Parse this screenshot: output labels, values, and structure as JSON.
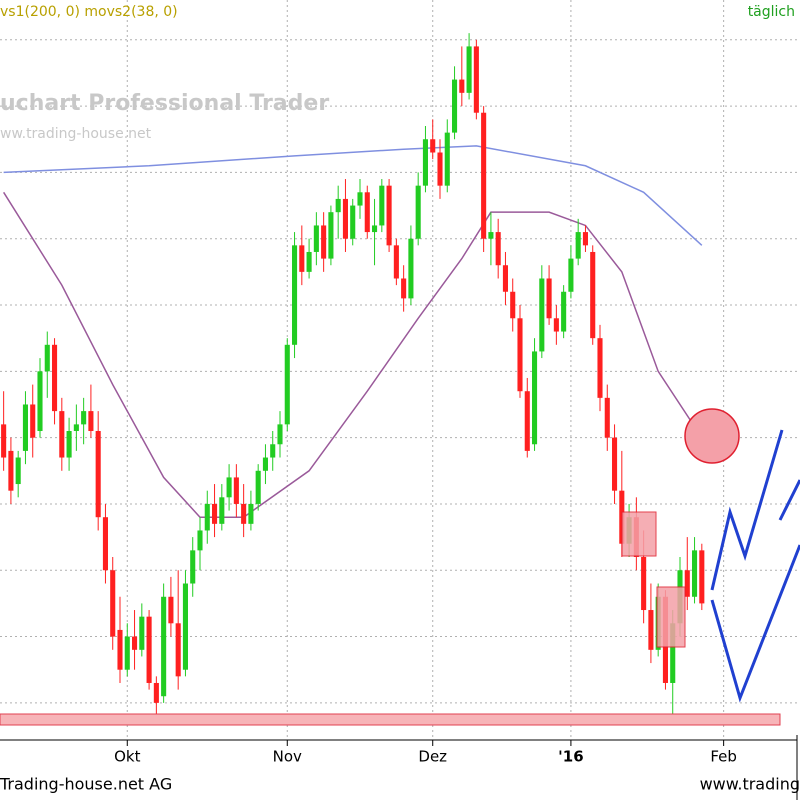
{
  "chart_data": {
    "type": "candlestick",
    "legend_text": "vs1(200, 0) movs2(38, 0)",
    "period": "täglich",
    "watermark": [
      "uchart Professional Trader",
      "ww.trading-house.net"
    ],
    "footer_left": "Trading-house.net AG",
    "footer_right": "www.trading",
    "up_color": "#22cc22",
    "down_color": "#ff2020",
    "xlim": [
      -0.5,
      109.5
    ],
    "ylim": [
      -5.6,
      106
    ],
    "yticks": [
      0,
      10,
      20,
      30,
      40,
      50,
      60,
      70,
      80,
      90,
      100
    ],
    "xticks": [
      {
        "value": 17,
        "label": "Okt"
      },
      {
        "value": 39,
        "label": "Nov"
      },
      {
        "value": 59,
        "label": "Dez"
      },
      {
        "value": 78,
        "label": "'16"
      },
      {
        "value": 99,
        "label": "Feb"
      }
    ],
    "grid": true,
    "open": [
      42,
      38,
      33,
      38,
      45,
      41,
      50,
      54,
      44,
      37,
      41,
      42,
      44,
      41,
      28,
      20,
      11,
      5,
      10,
      8,
      13,
      3,
      1,
      16,
      12,
      5,
      18,
      23,
      26,
      30,
      27,
      31,
      34,
      30,
      27,
      30,
      35,
      37,
      39,
      42,
      54,
      69,
      65,
      68,
      72,
      67,
      74,
      76,
      70,
      75,
      77,
      71,
      72,
      78,
      69,
      64,
      61,
      70,
      78,
      85,
      83,
      78,
      86,
      94,
      92,
      99,
      89,
      70,
      71,
      66,
      62,
      58,
      47,
      39,
      53,
      64,
      58,
      56,
      62,
      67,
      71,
      68,
      55,
      46,
      40,
      32,
      24,
      28,
      22,
      14,
      8,
      16,
      3,
      12,
      20,
      16,
      23
    ],
    "high": [
      47,
      40,
      38,
      47,
      48,
      52,
      56,
      55,
      46,
      43,
      45,
      46,
      48,
      44,
      30,
      22,
      16,
      12,
      14,
      15,
      14,
      4,
      18,
      19,
      20,
      20,
      25,
      28,
      32,
      33,
      33,
      36,
      36,
      33,
      32,
      36,
      39,
      41,
      44,
      55,
      71,
      72,
      70,
      74,
      74,
      75,
      78,
      79,
      76,
      79,
      78,
      76,
      79,
      79,
      70,
      66,
      72,
      80,
      87,
      88,
      85,
      88,
      96,
      99,
      101,
      100,
      90,
      74,
      73,
      68,
      64,
      60,
      49,
      55,
      66,
      66,
      60,
      63,
      69,
      73,
      72,
      69,
      57,
      48,
      42,
      38,
      30,
      31,
      26,
      18,
      18,
      17,
      14,
      22,
      25,
      25,
      24
    ],
    "low": [
      35,
      30,
      31,
      36,
      37,
      40,
      46,
      42,
      35,
      35,
      38,
      39,
      40,
      26,
      18,
      8,
      3,
      4,
      5,
      7,
      2,
      -2,
      0,
      10,
      2,
      4,
      16,
      20,
      24,
      25,
      26,
      29,
      28,
      25,
      26,
      29,
      33,
      35,
      37,
      41,
      52,
      63,
      64,
      66,
      65,
      66,
      70,
      68,
      69,
      73,
      70,
      66,
      71,
      68,
      63,
      59,
      60,
      69,
      77,
      82,
      76,
      77,
      85,
      90,
      91,
      88,
      68,
      66,
      64,
      60,
      56,
      46,
      37,
      38,
      52,
      57,
      54,
      55,
      61,
      66,
      68,
      54,
      44,
      38,
      30,
      22,
      22,
      20,
      12,
      6,
      7,
      2,
      -2,
      10,
      14,
      15,
      14
    ],
    "close": [
      37,
      32,
      37,
      45,
      40,
      50,
      54,
      44,
      37,
      41,
      42,
      44,
      41,
      28,
      20,
      10,
      5,
      10,
      8,
      13,
      3,
      0,
      16,
      12,
      4,
      18,
      23,
      26,
      30,
      27,
      31,
      34,
      30,
      27,
      30,
      35,
      37,
      39,
      42,
      54,
      69,
      65,
      68,
      72,
      67,
      74,
      76,
      70,
      75,
      77,
      71,
      72,
      78,
      69,
      64,
      61,
      70,
      78,
      85,
      83,
      78,
      86,
      94,
      92,
      99,
      89,
      70,
      71,
      66,
      62,
      58,
      47,
      38,
      53,
      64,
      58,
      56,
      62,
      67,
      71,
      69,
      55,
      46,
      40,
      32,
      24,
      28,
      22,
      14,
      8,
      16,
      3,
      12,
      20,
      16,
      23,
      15
    ],
    "lines": [
      {
        "color": "#7f8fe0",
        "x": [
          0,
          20,
          40,
          55,
          65,
          80,
          88,
          96
        ],
        "values": [
          80,
          81,
          82.5,
          83.5,
          84,
          81,
          77,
          69
        ]
      },
      {
        "color": "#9a5a9a",
        "x": [
          0,
          8,
          15,
          22,
          27,
          33,
          42,
          50,
          57,
          63,
          67,
          75,
          80,
          85,
          90,
          96
        ],
        "values": [
          77,
          63,
          48,
          34,
          28,
          28,
          35,
          47,
          58,
          67,
          74,
          74,
          72,
          65,
          50,
          40
        ]
      }
    ]
  }
}
